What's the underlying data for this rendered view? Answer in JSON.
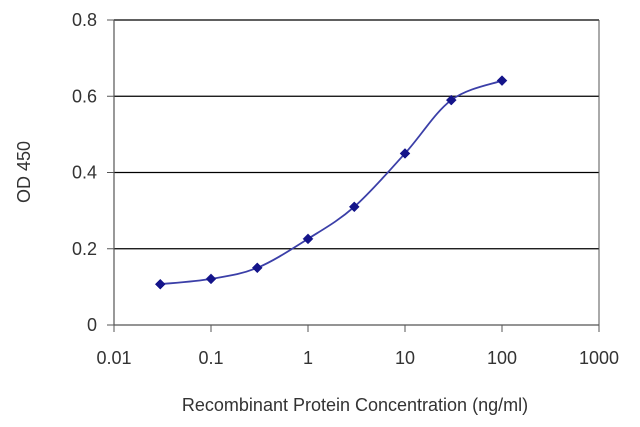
{
  "chart_data": {
    "type": "line",
    "title": "",
    "xlabel": "Recombinant Protein Concentration (ng/ml)",
    "ylabel": "OD 450",
    "x_scale": "log",
    "xlim": [
      0.01,
      1000
    ],
    "ylim": [
      0,
      0.8
    ],
    "x_ticks": [
      0.01,
      0.1,
      1,
      10,
      100,
      1000
    ],
    "x_tick_labels": [
      "0.01",
      "0.1",
      "1",
      "10",
      "100",
      "1000"
    ],
    "y_ticks": [
      0,
      0.2,
      0.4,
      0.6,
      0.8
    ],
    "y_tick_labels": [
      "0",
      "0.2",
      "0.4",
      "0.6",
      "0.8"
    ],
    "grid": "horizontal",
    "series": [
      {
        "x": [
          0.03,
          0.1,
          0.3,
          1,
          3,
          10,
          30,
          100
        ],
        "y": [
          0.107,
          0.121,
          0.15,
          0.226,
          0.31,
          0.45,
          0.59,
          0.641
        ]
      }
    ],
    "colors": {
      "line": "#3b3fa8",
      "marker": "#14148a",
      "grid": "#000000",
      "axis": "#555555",
      "text": "#333333"
    }
  }
}
